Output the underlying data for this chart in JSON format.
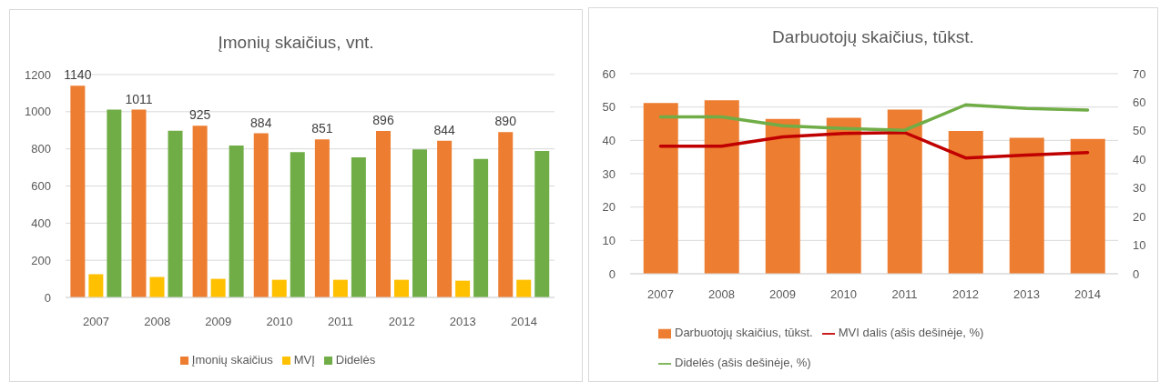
{
  "chart_data": [
    {
      "type": "bar",
      "title": "Įmonių skaičius, vnt.",
      "categories": [
        "2007",
        "2008",
        "2009",
        "2010",
        "2011",
        "2012",
        "2013",
        "2014"
      ],
      "series": [
        {
          "name": "Įmonių skaičius",
          "color": "#ed7d31",
          "values": [
            1140,
            1011,
            925,
            884,
            851,
            896,
            844,
            890
          ],
          "value_labels": [
            "1140",
            "1011",
            "925",
            "884",
            "851",
            "896",
            "844",
            "890"
          ]
        },
        {
          "name": "MVĮ",
          "color": "#ffc000",
          "values": [
            125,
            110,
            100,
            95,
            95,
            95,
            90,
            95
          ]
        },
        {
          "name": "Didelės",
          "color": "#70ad47",
          "values": [
            1011,
            898,
            818,
            783,
            754,
            797,
            746,
            789
          ]
        }
      ],
      "ylim": [
        0,
        1200
      ],
      "yticks": [
        0,
        200,
        400,
        600,
        800,
        1000,
        1200
      ],
      "grid": "y",
      "legend": "bottom"
    },
    {
      "type": "bar",
      "title": "Darbuotojų skaičius, tūkst.",
      "categories": [
        "2007",
        "2008",
        "2009",
        "2010",
        "2011",
        "2012",
        "2013",
        "2014"
      ],
      "series": [
        {
          "name": "Darbuotojų skaičius, tūkst.",
          "color": "#ed7d31",
          "values": [
            51.2,
            52.0,
            46.4,
            46.8,
            49.2,
            42.8,
            40.8,
            40.4
          ]
        },
        {
          "type": "line",
          "name": "MVI dalis (ašis dešinėje, %)",
          "color": "#c00000",
          "axis": "y2",
          "values": [
            44.6,
            44.6,
            47.9,
            49.1,
            49.4,
            40.5,
            41.5,
            42.4
          ]
        },
        {
          "type": "line",
          "name": "Didelės (ašis dešinėje, %)",
          "color": "#70ad47",
          "axis": "y2",
          "values": [
            54.9,
            54.9,
            51.8,
            50.8,
            50.2,
            59.1,
            57.8,
            57.3
          ]
        }
      ],
      "ylim": [
        0,
        60
      ],
      "yticks": [
        0,
        10,
        20,
        30,
        40,
        50,
        60
      ],
      "y2lim": [
        0,
        70
      ],
      "y2ticks": [
        0,
        10,
        20,
        30,
        40,
        50,
        60,
        70
      ],
      "grid": "y",
      "legend": "bottom",
      "marker": "none"
    }
  ]
}
